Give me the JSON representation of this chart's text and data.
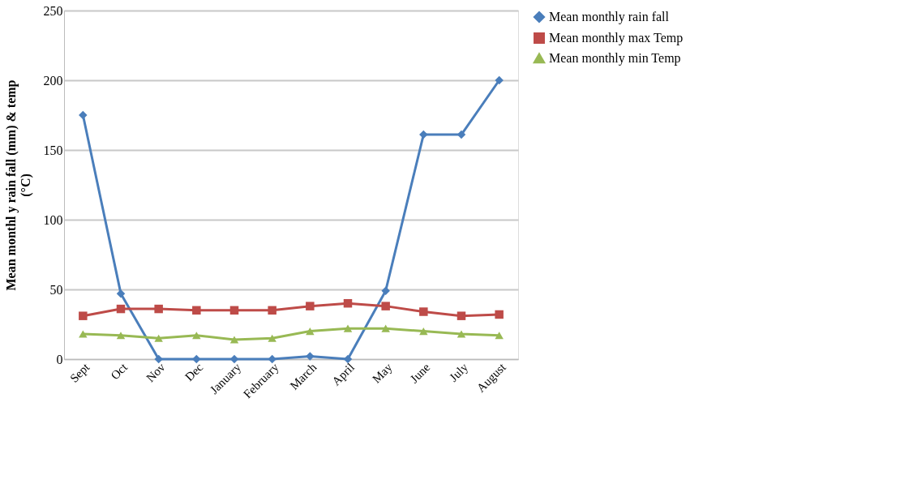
{
  "chart_data": {
    "type": "line",
    "ylabel": "Mean monthl y  rain fall (mm) & temp (°C)",
    "categories": [
      "Sept",
      "Oct",
      "Nov",
      "Dec",
      "January",
      "February",
      "March",
      "April",
      "May",
      "June",
      "July",
      "August"
    ],
    "series": [
      {
        "name": "Mean monthly  rain fall",
        "color": "#4a7ebb",
        "marker": "diamond",
        "values": [
          175,
          47,
          0,
          0,
          0,
          0,
          2,
          0,
          49,
          161,
          161,
          200
        ]
      },
      {
        "name": "Mean monthly max Temp",
        "color": "#be4b48",
        "marker": "square",
        "values": [
          31,
          36,
          36,
          35,
          35,
          35,
          38,
          40,
          38,
          34,
          31,
          32
        ]
      },
      {
        "name": "Mean monthly min Temp",
        "color": "#98b954",
        "marker": "triangle",
        "values": [
          18,
          17,
          15,
          17,
          14,
          15,
          20,
          22,
          22,
          20,
          18,
          17
        ]
      }
    ],
    "ylim": [
      0,
      250
    ],
    "yticks": [
      0,
      50,
      100,
      150,
      200,
      250
    ],
    "grid": "y",
    "legend": "right",
    "line_style": "solid"
  }
}
